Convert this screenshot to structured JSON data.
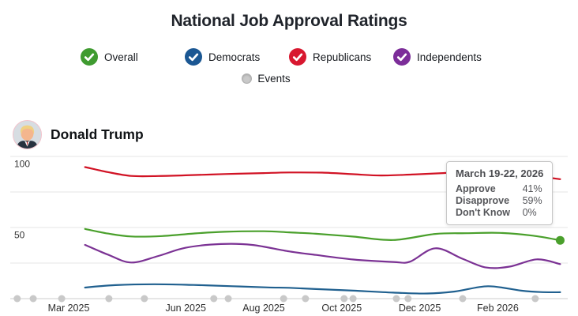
{
  "header": {
    "title": "National Job Approval Ratings"
  },
  "legend": {
    "items": [
      {
        "label": "Overall",
        "color": "#3f9b30",
        "checked": true
      },
      {
        "label": "Democrats",
        "color": "#1b5793",
        "checked": true
      },
      {
        "label": "Republicans",
        "color": "#d8172f",
        "checked": true
      },
      {
        "label": "Independents",
        "color": "#7c2d99",
        "checked": true
      }
    ],
    "events": {
      "label": "Events",
      "color": "#c9c9c9",
      "checked": false
    }
  },
  "person": {
    "name": "Donald Trump"
  },
  "tooltip": {
    "date": "March 19-22, 2026",
    "rows": [
      {
        "label": "Approve",
        "value": "41%"
      },
      {
        "label": "Disapprove",
        "value": "59%"
      },
      {
        "label": "Don't Know",
        "value": "0%"
      }
    ]
  },
  "chart_data": {
    "type": "line",
    "title": "National Job Approval Ratings",
    "person": "Donald Trump",
    "x_axis": {
      "unit": "months_after_Mar_2025_tick",
      "ticks": [
        {
          "label": "Mar 2025",
          "m": 0
        },
        {
          "label": "Jun 2025",
          "m": 3
        },
        {
          "label": "Aug 2025",
          "m": 5
        },
        {
          "label": "Oct 2025",
          "m": 7
        },
        {
          "label": "Dec 2025",
          "m": 9
        },
        {
          "label": "Feb 2026",
          "m": 11
        }
      ]
    },
    "y_axis": {
      "min": 0,
      "max": 100,
      "gridlines": [
        100,
        75,
        50,
        25,
        0
      ],
      "labeled_ticks": [
        {
          "label": "100",
          "v": 100
        },
        {
          "label": "50",
          "v": 50
        }
      ]
    },
    "series": [
      {
        "name": "Republicans",
        "color": "#d11224",
        "points": [
          [
            0.42,
            92.5
          ],
          [
            1.0,
            89.0
          ],
          [
            1.6,
            86.3
          ],
          [
            2.3,
            86.2
          ],
          [
            3.0,
            86.7
          ],
          [
            4.0,
            87.6
          ],
          [
            5.0,
            88.3
          ],
          [
            5.65,
            88.7
          ],
          [
            6.5,
            88.6
          ],
          [
            7.3,
            87.5
          ],
          [
            8.0,
            86.6
          ],
          [
            8.8,
            87.3
          ],
          [
            9.6,
            88.3
          ],
          [
            10.4,
            89.0
          ],
          [
            11.5,
            87.5
          ],
          [
            12.6,
            84.0
          ]
        ]
      },
      {
        "name": "Overall",
        "color": "#4aa02c",
        "points": [
          [
            0.42,
            49.0
          ],
          [
            1.0,
            45.8
          ],
          [
            1.6,
            43.7
          ],
          [
            2.4,
            44.0
          ],
          [
            3.2,
            45.8
          ],
          [
            4.0,
            47.0
          ],
          [
            5.0,
            47.4
          ],
          [
            5.65,
            46.6
          ],
          [
            6.34,
            45.6
          ],
          [
            7.3,
            43.6
          ],
          [
            8.32,
            41.2
          ],
          [
            9.4,
            45.5
          ],
          [
            10.2,
            46.0
          ],
          [
            11.05,
            46.2
          ],
          [
            11.9,
            44.3
          ],
          [
            12.6,
            41.0
          ]
        ]
      },
      {
        "name": "Independents",
        "color": "#7b3294",
        "points": [
          [
            0.42,
            37.8
          ],
          [
            1.0,
            31.0
          ],
          [
            1.6,
            25.4
          ],
          [
            2.3,
            30.0
          ],
          [
            3.0,
            35.8
          ],
          [
            3.9,
            38.4
          ],
          [
            4.7,
            37.8
          ],
          [
            5.65,
            33.2
          ],
          [
            6.34,
            30.7
          ],
          [
            7.3,
            27.5
          ],
          [
            8.32,
            25.8
          ],
          [
            8.75,
            26.0
          ],
          [
            9.4,
            35.4
          ],
          [
            10.1,
            28.0
          ],
          [
            10.7,
            21.9
          ],
          [
            11.3,
            22.5
          ],
          [
            12.0,
            27.6
          ],
          [
            12.6,
            24.3
          ]
        ]
      },
      {
        "name": "Democrats",
        "color": "#20608f",
        "points": [
          [
            0.42,
            7.8
          ],
          [
            1.2,
            9.5
          ],
          [
            2.2,
            10.1
          ],
          [
            3.2,
            9.6
          ],
          [
            4.2,
            8.7
          ],
          [
            5.1,
            7.9
          ],
          [
            5.65,
            7.6
          ],
          [
            6.34,
            6.7
          ],
          [
            7.3,
            5.6
          ],
          [
            8.32,
            4.2
          ],
          [
            9.2,
            3.6
          ],
          [
            9.9,
            5.0
          ],
          [
            10.75,
            8.7
          ],
          [
            11.6,
            5.6
          ],
          [
            12.1,
            4.6
          ],
          [
            12.6,
            4.5
          ]
        ]
      }
    ],
    "events_m": [
      -1.32,
      -0.91,
      -0.18,
      1.03,
      1.94,
      3.72,
      4.09,
      5.51,
      6.07,
      7.06,
      7.29,
      8.4,
      8.7,
      10.1,
      11.96
    ],
    "event_color": "#c9c9c9",
    "highlight_point": {
      "series": "Overall",
      "m": 12.6,
      "value": 41,
      "date": "March 19-22, 2026"
    }
  }
}
